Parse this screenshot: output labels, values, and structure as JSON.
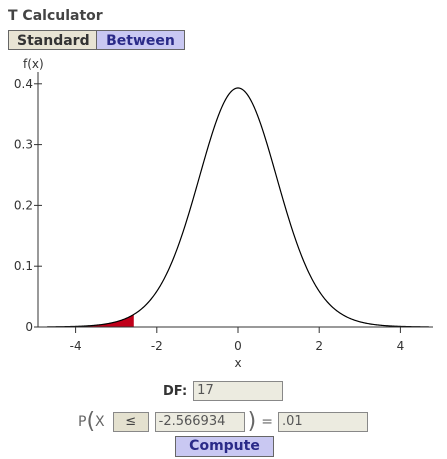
{
  "app": {
    "title": "T Calculator"
  },
  "tabs": [
    {
      "label": "Standard",
      "active": false
    },
    {
      "label": "Between",
      "active": true
    }
  ],
  "chart_data": {
    "type": "line",
    "distribution": "t",
    "df": 17,
    "ylabel": "f(x)",
    "xlabel": "x",
    "xlim": [
      -4.7,
      4.7
    ],
    "ylim": [
      0,
      0.4
    ],
    "x_ticks": [
      "-4",
      "-2",
      "0",
      "2",
      "4"
    ],
    "x_tick_values": [
      -4,
      -2,
      0,
      2,
      4
    ],
    "y_ticks": [
      "0",
      "0.1",
      "0.2",
      "0.3",
      "0.4"
    ],
    "y_tick_values": [
      0,
      0.1,
      0.2,
      0.3,
      0.4
    ],
    "shaded_region": {
      "from": -4.7,
      "to": -2.566934,
      "color": "#c0001a"
    },
    "curve_color": "#000000"
  },
  "form": {
    "df_label": "DF:",
    "df_value": "17",
    "p_label": "P",
    "x_label": "X",
    "operator": "≤",
    "x_value": "-2.566934",
    "equals": "=",
    "probability": ".01",
    "compute_label": "Compute"
  }
}
